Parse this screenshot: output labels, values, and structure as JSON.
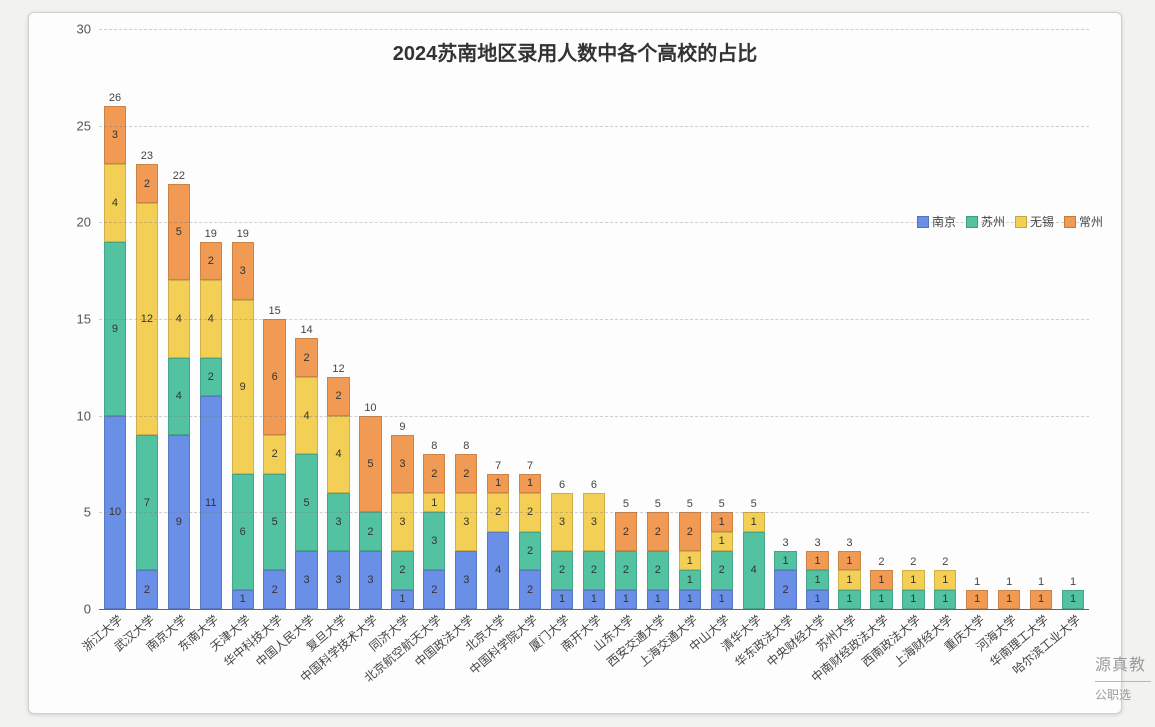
{
  "chart": {
    "type": "stacked-bar",
    "title": "2024苏南地区录用人数中各个高校的占比",
    "title_fontsize": 20,
    "background_color": "#fdfdfd",
    "page_background": "#f2f3f1",
    "grid_color": "rgba(120,120,120,0.35)",
    "axis_color": "#666666",
    "label_color": "#444444",
    "ylim": [
      0,
      30
    ],
    "ytick_step": 5,
    "yticks": [
      0,
      5,
      10,
      15,
      20,
      25,
      30
    ],
    "bar_width_ratio": 0.7,
    "xlabel_rotation_deg": -40,
    "series": [
      {
        "key": "nj",
        "label": "南京",
        "color": "#6a8fe6"
      },
      {
        "key": "sz",
        "label": "苏州",
        "color": "#52c2a0"
      },
      {
        "key": "wx",
        "label": "无锡",
        "color": "#f4cf55"
      },
      {
        "key": "cz",
        "label": "常州",
        "color": "#f09a53"
      }
    ],
    "categories": [
      {
        "name": "浙江大学",
        "total": 26,
        "nj": 10,
        "sz": 9,
        "wx": 4,
        "cz": 3
      },
      {
        "name": "武汉大学",
        "total": 23,
        "nj": 2,
        "sz": 7,
        "wx": 12,
        "cz": 2
      },
      {
        "name": "南京大学",
        "total": 22,
        "nj": 9,
        "sz": 4,
        "wx": 4,
        "cz": 5
      },
      {
        "name": "东南大学",
        "total": 19,
        "nj": 11,
        "sz": 2,
        "wx": 4,
        "cz": 2
      },
      {
        "name": "天津大学",
        "total": 19,
        "nj": 1,
        "sz": 6,
        "wx": 9,
        "cz": 3
      },
      {
        "name": "华中科技大学",
        "total": 15,
        "nj": 2,
        "sz": 5,
        "wx": 2,
        "cz": 6
      },
      {
        "name": "中国人民大学",
        "total": 14,
        "nj": 3,
        "sz": 5,
        "wx": 4,
        "cz": 2
      },
      {
        "name": "复旦大学",
        "total": 12,
        "nj": 3,
        "sz": 3,
        "wx": 4,
        "cz": 2
      },
      {
        "name": "中国科学技术大学",
        "total": 10,
        "nj": 3,
        "sz": 2,
        "wx": 0,
        "cz": 5
      },
      {
        "name": "同济大学",
        "total": 9,
        "nj": 1,
        "sz": 2,
        "wx": 3,
        "cz": 3
      },
      {
        "name": "北京航空航天大学",
        "total": 8,
        "nj": 2,
        "sz": 3,
        "wx": 1,
        "cz": 2
      },
      {
        "name": "中国政法大学",
        "total": 8,
        "nj": 3,
        "sz": 0,
        "wx": 3,
        "cz": 2
      },
      {
        "name": "北京大学",
        "total": 7,
        "nj": 4,
        "sz": 0,
        "wx": 2,
        "cz": 1
      },
      {
        "name": "中国科学院大学",
        "total": 7,
        "nj": 2,
        "sz": 2,
        "wx": 2,
        "cz": 1
      },
      {
        "name": "厦门大学",
        "total": 6,
        "nj": 1,
        "sz": 2,
        "wx": 3,
        "cz": 0
      },
      {
        "name": "南开大学",
        "total": 6,
        "nj": 1,
        "sz": 2,
        "wx": 3,
        "cz": 0
      },
      {
        "name": "山东大学",
        "total": 5,
        "nj": 1,
        "sz": 2,
        "wx": 0,
        "cz": 2
      },
      {
        "name": "西安交通大学",
        "total": 5,
        "nj": 1,
        "sz": 2,
        "wx": 0,
        "cz": 2
      },
      {
        "name": "上海交通大学",
        "total": 5,
        "nj": 1,
        "sz": 1,
        "wx": 1,
        "cz": 2
      },
      {
        "name": "中山大学",
        "total": 5,
        "nj": 1,
        "sz": 2,
        "wx": 1,
        "cz": 1
      },
      {
        "name": "清华大学",
        "total": 5,
        "nj": 0,
        "sz": 4,
        "wx": 1,
        "cz": 0
      },
      {
        "name": "华东政法大学",
        "total": 3,
        "nj": 2,
        "sz": 1,
        "wx": 0,
        "cz": 0
      },
      {
        "name": "中央财经大学",
        "total": 3,
        "nj": 1,
        "sz": 1,
        "wx": 0,
        "cz": 1
      },
      {
        "name": "苏州大学",
        "total": 3,
        "nj": 0,
        "sz": 1,
        "wx": 1,
        "cz": 1
      },
      {
        "name": "中南财经政法大学",
        "total": 2,
        "nj": 0,
        "sz": 1,
        "wx": 0,
        "cz": 1
      },
      {
        "name": "西南政法大学",
        "total": 2,
        "nj": 0,
        "sz": 1,
        "wx": 1,
        "cz": 0
      },
      {
        "name": "上海财经大学",
        "total": 2,
        "nj": 0,
        "sz": 1,
        "wx": 1,
        "cz": 0
      },
      {
        "name": "重庆大学",
        "total": 1,
        "nj": 0,
        "sz": 0,
        "wx": 0,
        "cz": 1
      },
      {
        "name": "河海大学",
        "total": 1,
        "nj": 0,
        "sz": 0,
        "wx": 0,
        "cz": 1
      },
      {
        "name": "华南理工大学",
        "total": 1,
        "nj": 0,
        "sz": 0,
        "wx": 0,
        "cz": 1
      },
      {
        "name": "哈尔滨工业大学",
        "total": 1,
        "nj": 0,
        "sz": 1,
        "wx": 0,
        "cz": 0
      }
    ]
  },
  "watermark": {
    "main": "源真教",
    "sub": "公职选"
  }
}
